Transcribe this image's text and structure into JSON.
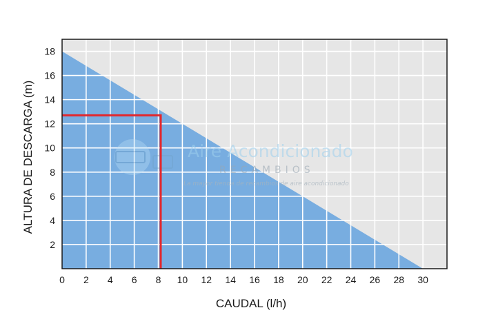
{
  "chart_data": {
    "type": "area",
    "xlabel": "CAUDAL (l/h)",
    "ylabel": "ALTURA DE DESCARGA (m)",
    "xlim": [
      0,
      32
    ],
    "ylim": [
      0,
      19
    ],
    "x_ticks": [
      "0",
      "2",
      "4",
      "6",
      "8",
      "10",
      "12",
      "14",
      "16",
      "18",
      "20",
      "22",
      "24",
      "26",
      "28",
      "30"
    ],
    "y_ticks": [
      "2",
      "4",
      "6",
      "8",
      "10",
      "12",
      "14",
      "16",
      "18"
    ],
    "series": [
      {
        "x": [
          0,
          30
        ],
        "y": [
          18,
          0
        ]
      }
    ],
    "marker": {
      "x": 8.2,
      "y": 12.7
    },
    "grid": true,
    "colors": {
      "area": "#78ade0",
      "plot_background": "#e6e6e6",
      "grid": "#ffffff",
      "marker": "#e3262b",
      "frame": "#1a1a1a"
    }
  },
  "watermark": {
    "title": "Aire Acondicionado",
    "subtitle": "RECAMBIOS",
    "tagline": "La mayor tienda de recambios de aire acondicionado",
    "icon": "snowflake-logo-icon"
  }
}
